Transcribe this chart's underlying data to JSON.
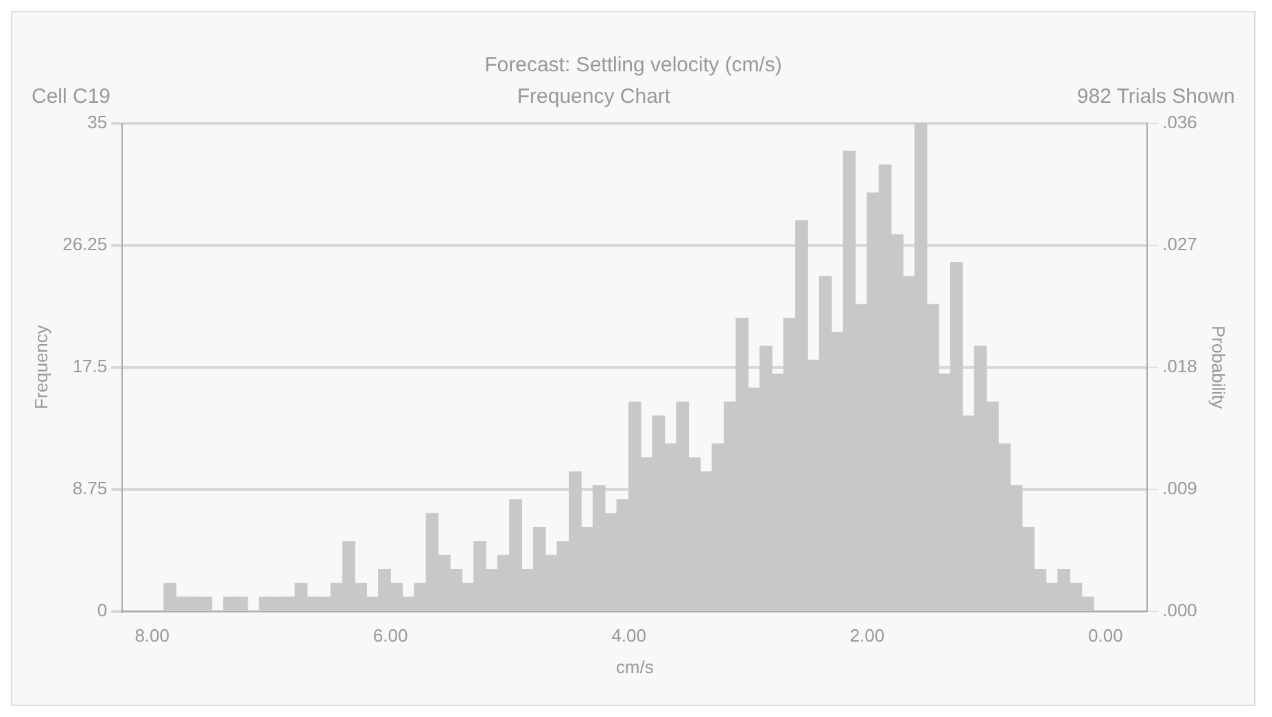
{
  "chart_data": {
    "type": "histogram",
    "title": "Forecast: Settling velocity (cm/s)",
    "subtitle": "Frequency Chart",
    "annotations": [
      "Cell C19",
      "982 Trials Shown"
    ],
    "xlabel": "cm/s",
    "ylabel": "Frequency",
    "y2label": "Probability",
    "color": "#c8c8c8",
    "bins": [
      0.1,
      0.2,
      0.3,
      0.4,
      0.5,
      0.6,
      0.7,
      0.8,
      0.9,
      1.0,
      1.1,
      1.2,
      1.3,
      1.4,
      1.5,
      1.6,
      1.7,
      1.8,
      1.9,
      2.0,
      2.1,
      2.2,
      2.3,
      2.4,
      2.5,
      2.6,
      2.7,
      2.8,
      2.9,
      3.0,
      3.1,
      3.2,
      3.3,
      3.4,
      3.5,
      3.6,
      3.7,
      3.8,
      3.9,
      4.0,
      4.1,
      4.2,
      4.3,
      4.4,
      4.5,
      4.6,
      4.7,
      4.8,
      4.9,
      5.0,
      5.1,
      5.2,
      5.3,
      5.4,
      5.5,
      5.6,
      5.7,
      5.8,
      5.9,
      6.0,
      6.1,
      6.2,
      6.3,
      6.4,
      6.5,
      6.6,
      6.7,
      6.8,
      6.9,
      7.0,
      7.1,
      7.2,
      7.3,
      7.4,
      7.5,
      7.6,
      7.7,
      7.8,
      7.9
    ],
    "values": [
      1,
      2,
      3,
      2,
      3,
      6,
      9,
      12,
      15,
      19,
      14,
      25,
      17,
      22,
      35,
      24,
      27,
      32,
      30,
      22,
      33,
      20,
      24,
      18,
      28,
      21,
      17,
      19,
      16,
      21,
      15,
      12,
      10,
      11,
      15,
      12,
      14,
      11,
      15,
      8,
      7,
      9,
      6,
      10,
      5,
      4,
      6,
      3,
      8,
      4,
      3,
      5,
      2,
      3,
      4,
      7,
      2,
      1,
      2,
      3,
      1,
      2,
      5,
      2,
      1,
      1,
      2,
      1,
      1,
      1,
      0,
      1,
      1,
      0,
      1,
      1,
      1,
      2
    ],
    "xlim": [
      8.25,
      -0.35
    ],
    "xticks": [
      {
        "value": 8,
        "label": "8.00"
      },
      {
        "value": 6,
        "label": "6.00"
      },
      {
        "value": 4,
        "label": "4.00"
      },
      {
        "value": 2,
        "label": "2.00"
      },
      {
        "value": 0,
        "label": "0.00"
      }
    ],
    "ylim": [
      0,
      35
    ],
    "yticks": [
      0,
      8.75,
      17.5,
      26.25,
      35
    ],
    "y2lim": [
      0,
      0.0356
    ],
    "y2ticks": [
      {
        "value": 0,
        "label": ".000"
      },
      {
        "value": 0.0089,
        "label": ".009"
      },
      {
        "value": 0.0178,
        "label": ".018"
      },
      {
        "value": 0.0267,
        "label": ".027"
      },
      {
        "value": 0.0356,
        "label": ".036"
      }
    ],
    "grid": "y",
    "legend": false
  }
}
